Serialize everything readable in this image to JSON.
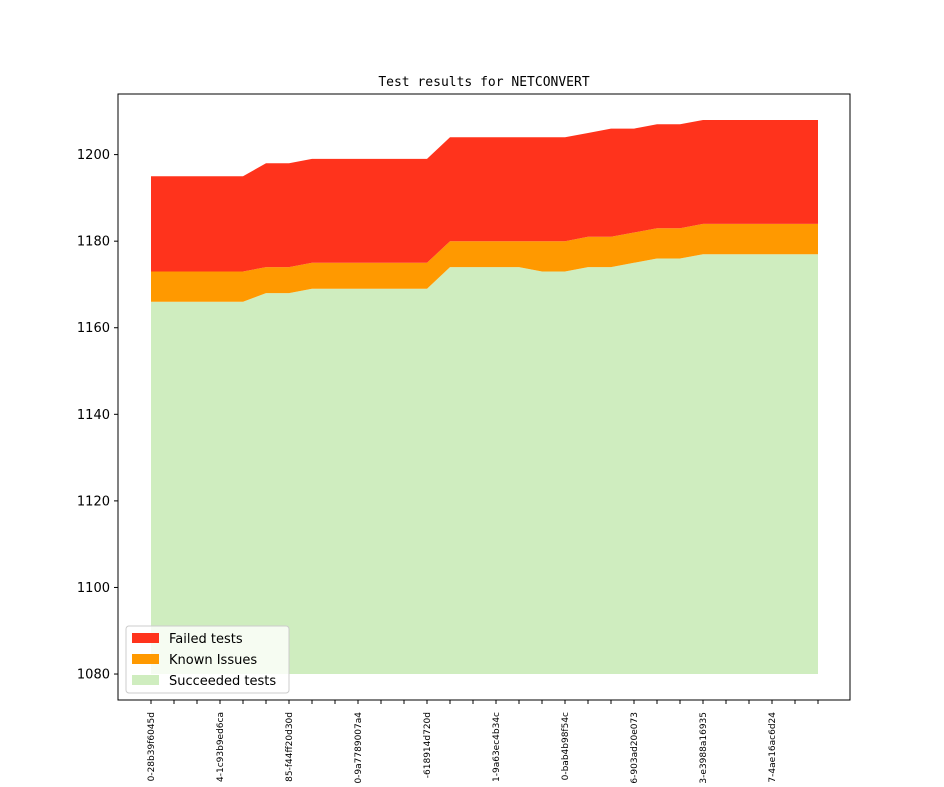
{
  "chart_data": {
    "type": "area",
    "stacked": true,
    "title": "Test results for NETCONVERT",
    "xlabel": "",
    "ylabel": "",
    "ylim": [
      1074,
      1214
    ],
    "yticks": [
      1080,
      1100,
      1120,
      1140,
      1160,
      1180,
      1200
    ],
    "baseline": 1080,
    "x_count": 30,
    "x_tick_labels": [
      {
        "index": 0,
        "label": "0-28b39f6045d"
      },
      {
        "index": 3,
        "label": "4-1c93b9ed6ca"
      },
      {
        "index": 6,
        "label": "85-f44ff20d30d"
      },
      {
        "index": 9,
        "label": "0-9a7789007a4"
      },
      {
        "index": 12,
        "label": "-618914d720d"
      },
      {
        "index": 15,
        "label": "1-9a63ec4b34c"
      },
      {
        "index": 18,
        "label": "0-bab4b98f54c"
      },
      {
        "index": 21,
        "label": "6-903ad20e073"
      },
      {
        "index": 24,
        "label": "3-e3988a16935"
      },
      {
        "index": 27,
        "label": "7-4ae16ac6d24"
      }
    ],
    "series": [
      {
        "name": "Succeeded tests",
        "color": "#cfedbf",
        "cumulative_top": [
          1166,
          1166,
          1166,
          1166,
          1166,
          1168,
          1168,
          1169,
          1169,
          1169,
          1169,
          1169,
          1169,
          1174,
          1174,
          1174,
          1174,
          1173,
          1173,
          1174,
          1174,
          1175,
          1176,
          1176,
          1177,
          1177,
          1177,
          1177,
          1177,
          1177
        ]
      },
      {
        "name": "Known Issues",
        "color": "#ff9900",
        "cumulative_top": [
          1173,
          1173,
          1173,
          1173,
          1173,
          1174,
          1174,
          1175,
          1175,
          1175,
          1175,
          1175,
          1175,
          1180,
          1180,
          1180,
          1180,
          1180,
          1180,
          1181,
          1181,
          1182,
          1183,
          1183,
          1184,
          1184,
          1184,
          1184,
          1184,
          1184
        ]
      },
      {
        "name": "Failed tests",
        "color": "#ff331c",
        "cumulative_top": [
          1195,
          1195,
          1195,
          1195,
          1195,
          1198,
          1198,
          1199,
          1199,
          1199,
          1199,
          1199,
          1199,
          1204,
          1204,
          1204,
          1204,
          1204,
          1204,
          1205,
          1206,
          1206,
          1207,
          1207,
          1208,
          1208,
          1208,
          1208,
          1208,
          1208
        ]
      }
    ],
    "legend": {
      "placement": "lower-left",
      "entries": [
        "Failed tests",
        "Known Issues",
        "Succeeded tests"
      ]
    }
  }
}
